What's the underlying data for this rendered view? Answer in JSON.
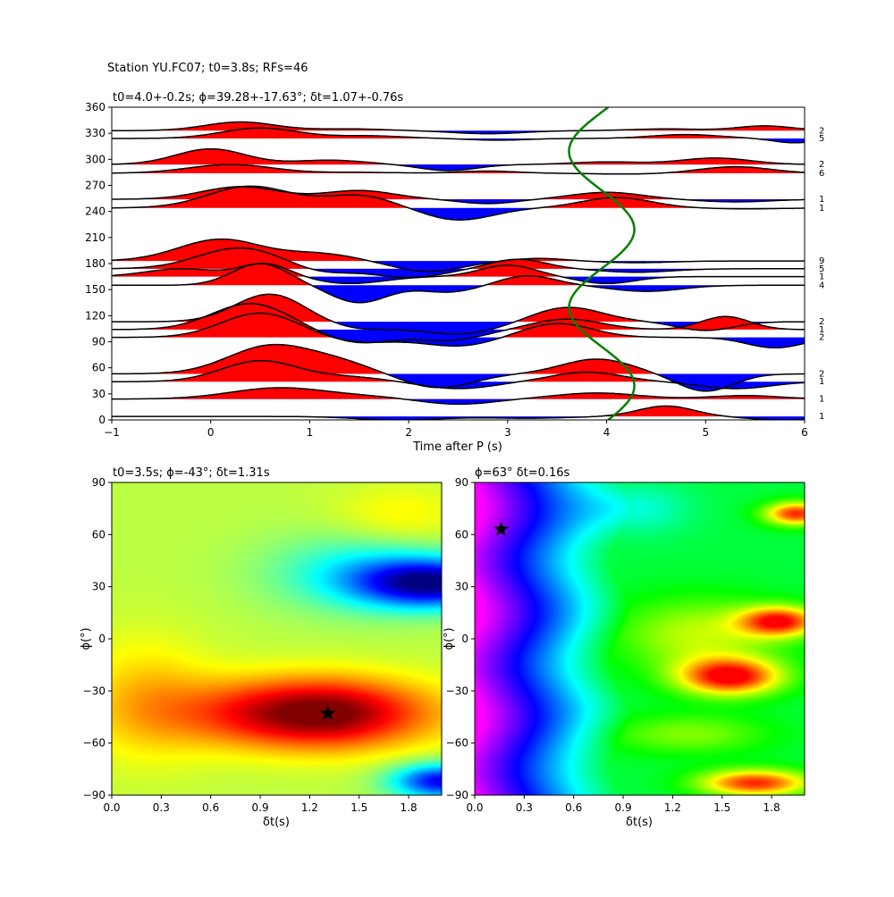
{
  "figure": {
    "suptitle": "Station YU.FC07; t0=3.8s; RFs=46"
  },
  "chart_data": [
    {
      "type": "line",
      "title": "t0=4.0+-0.2s; ϕ=39.28+-17.63°; δt=1.07+-0.76s",
      "xlabel": "Time after P (s)",
      "ylabel": "",
      "xlim": [
        -1,
        6
      ],
      "ylim": [
        0,
        360
      ],
      "xticks": [
        -1,
        0,
        1,
        2,
        3,
        4,
        5,
        6
      ],
      "yticks": [
        0,
        30,
        60,
        90,
        120,
        150,
        180,
        210,
        240,
        270,
        300,
        330,
        360
      ],
      "bin_counts": [
        {
          "y": 333,
          "count": "2"
        },
        {
          "y": 324,
          "count": "5"
        },
        {
          "y": 294,
          "count": "2"
        },
        {
          "y": 284,
          "count": "6"
        },
        {
          "y": 254,
          "count": "1"
        },
        {
          "y": 244,
          "count": "1"
        },
        {
          "y": 183,
          "count": "9"
        },
        {
          "y": 174,
          "count": "5"
        },
        {
          "y": 165,
          "count": "1"
        },
        {
          "y": 155,
          "count": "4"
        },
        {
          "y": 113,
          "count": "2"
        },
        {
          "y": 104,
          "count": "1"
        },
        {
          "y": 95,
          "count": "2"
        },
        {
          "y": 53,
          "count": "2"
        },
        {
          "y": 44,
          "count": "1"
        },
        {
          "y": 24,
          "count": "1"
        },
        {
          "y": 4,
          "count": "1"
        }
      ],
      "traces": [
        {
          "y0": 333,
          "amp": 1.0,
          "comps": [
            [
              0.3,
              0.5,
              1.0
            ],
            [
              1.4,
              0.5,
              0.2
            ],
            [
              2.8,
              0.5,
              -0.35
            ],
            [
              4.6,
              0.5,
              0.2
            ],
            [
              5.6,
              0.4,
              0.55
            ]
          ]
        },
        {
          "y0": 324,
          "amp": 1.0,
          "comps": [
            [
              0.5,
              0.55,
              1.2
            ],
            [
              1.6,
              0.5,
              0.3
            ],
            [
              2.9,
              0.4,
              -0.2
            ],
            [
              4.8,
              0.5,
              0.45
            ],
            [
              5.9,
              0.3,
              -0.5
            ]
          ]
        },
        {
          "y0": 294,
          "amp": 1.0,
          "comps": [
            [
              0.0,
              0.5,
              1.8
            ],
            [
              1.2,
              0.5,
              0.5
            ],
            [
              2.4,
              0.4,
              -0.7
            ],
            [
              4.0,
              0.5,
              0.3
            ],
            [
              5.1,
              0.5,
              0.75
            ]
          ]
        },
        {
          "y0": 284,
          "amp": 1.0,
          "comps": [
            [
              0.2,
              0.6,
              1.0
            ],
            [
              1.5,
              0.5,
              0.1
            ],
            [
              2.8,
              0.4,
              0.25
            ],
            [
              4.2,
              0.5,
              -0.1
            ],
            [
              5.3,
              0.5,
              0.75
            ]
          ]
        },
        {
          "y0": 254,
          "amp": 1.0,
          "comps": [
            [
              0.3,
              0.55,
              1.45
            ],
            [
              1.5,
              0.5,
              1.0
            ],
            [
              2.8,
              0.4,
              -0.5
            ],
            [
              4.0,
              0.5,
              0.8
            ],
            [
              5.3,
              0.5,
              -0.3
            ]
          ]
        },
        {
          "y0": 244,
          "amp": 1.0,
          "comps": [
            [
              0.4,
              0.6,
              2.5
            ],
            [
              1.5,
              0.5,
              1.4
            ],
            [
              2.5,
              0.5,
              -1.4
            ],
            [
              4.1,
              0.5,
              1.2
            ],
            [
              5.4,
              0.5,
              -0.1
            ]
          ]
        },
        {
          "y0": 183,
          "amp": 1.0,
          "comps": [
            [
              0.1,
              0.6,
              2.5
            ],
            [
              1.1,
              0.5,
              0.8
            ],
            [
              2.2,
              0.5,
              -1.2
            ],
            [
              3.3,
              0.4,
              0.3
            ],
            [
              4.3,
              0.5,
              -0.2
            ]
          ]
        },
        {
          "y0": 174,
          "amp": 1.0,
          "comps": [
            [
              0.3,
              0.6,
              2.4
            ],
            [
              1.1,
              0.4,
              -0.6
            ],
            [
              2.0,
              0.5,
              -1.0
            ],
            [
              3.1,
              0.4,
              1.1
            ],
            [
              4.3,
              0.5,
              -0.4
            ]
          ]
        },
        {
          "y0": 165,
          "amp": 1.0,
          "comps": [
            [
              -0.3,
              0.5,
              0.9
            ],
            [
              0.55,
              0.35,
              1.5
            ],
            [
              1.4,
              0.5,
              -0.8
            ],
            [
              3.0,
              0.4,
              1.3
            ],
            [
              4.0,
              0.4,
              -0.8
            ]
          ]
        },
        {
          "y0": 155,
          "amp": 1.0,
          "comps": [
            [
              0.5,
              0.4,
              2.5
            ],
            [
              1.5,
              0.4,
              -2.0
            ],
            [
              2.4,
              0.4,
              -0.8
            ],
            [
              3.2,
              0.4,
              1.1
            ],
            [
              4.4,
              0.5,
              -0.7
            ]
          ]
        },
        {
          "y0": 113,
          "amp": 1.0,
          "comps": [
            [
              0.6,
              0.5,
              3.2
            ],
            [
              1.5,
              0.5,
              -0.8
            ],
            [
              2.5,
              0.6,
              -1.4
            ],
            [
              3.6,
              0.5,
              1.7
            ],
            [
              5.0,
              0.4,
              -1.0
            ]
          ]
        },
        {
          "y0": 104,
          "amp": 1.0,
          "comps": [
            [
              0.4,
              0.55,
              3.0
            ],
            [
              1.5,
              0.5,
              -1.5
            ],
            [
              2.4,
              0.5,
              -1.2
            ],
            [
              3.6,
              0.5,
              1.2
            ],
            [
              5.2,
              0.35,
              1.5
            ]
          ]
        },
        {
          "y0": 95,
          "amp": 1.0,
          "comps": [
            [
              0.5,
              0.55,
              2.8
            ],
            [
              1.5,
              0.5,
              -0.6
            ],
            [
              2.5,
              0.5,
              -1.0
            ],
            [
              3.5,
              0.5,
              1.6
            ],
            [
              5.7,
              0.4,
              -1.2
            ]
          ]
        },
        {
          "y0": 53,
          "amp": 1.0,
          "comps": [
            [
              0.6,
              0.6,
              3.2
            ],
            [
              1.3,
              0.5,
              1.1
            ],
            [
              2.3,
              0.5,
              -1.6
            ],
            [
              3.9,
              0.5,
              1.7
            ],
            [
              5.0,
              0.4,
              -2.0
            ]
          ]
        },
        {
          "y0": 44,
          "amp": 1.0,
          "comps": [
            [
              0.5,
              0.55,
              2.4
            ],
            [
              1.4,
              0.5,
              0.5
            ],
            [
              2.5,
              0.5,
              -0.8
            ],
            [
              3.8,
              0.5,
              1.1
            ],
            [
              5.3,
              0.5,
              -0.8
            ]
          ]
        },
        {
          "y0": 24,
          "amp": 1.0,
          "comps": [
            [
              0.7,
              0.7,
              1.3
            ],
            [
              1.6,
              0.5,
              0.2
            ],
            [
              2.5,
              0.5,
              -0.6
            ],
            [
              3.9,
              0.6,
              0.7
            ],
            [
              5.4,
              0.5,
              0.4
            ]
          ]
        },
        {
          "y0": 4,
          "amp": 1.0,
          "comps": [
            [
              0.2,
              0.7,
              0.0
            ],
            [
              1.9,
              0.6,
              -0.4
            ],
            [
              3.2,
              0.6,
              -0.2
            ],
            [
              4.6,
              0.4,
              1.2
            ],
            [
              5.8,
              0.5,
              -0.4
            ]
          ]
        }
      ],
      "fit_curve": {
        "color": "#008000",
        "x_center": 3.95,
        "x_amplitude": 0.33,
        "phase_deg": 39.28
      }
    },
    {
      "type": "heatmap",
      "title": "t0=3.5s; ϕ=-43°; δt=1.31s",
      "xlabel": "δt(s)",
      "ylabel": "ϕ(°)",
      "xlim": [
        0,
        2.0
      ],
      "ylim": [
        -90,
        90
      ],
      "xticks": [
        0.0,
        0.3,
        0.6,
        0.9,
        1.2,
        1.5,
        1.8
      ],
      "yticks": [
        -90,
        -60,
        -30,
        0,
        30,
        60,
        90
      ],
      "colormap": "jet",
      "best": {
        "dt": 1.31,
        "phi": -43
      }
    },
    {
      "type": "heatmap",
      "title": "ϕ=63° δt=0.16s",
      "xlabel": "δt(s)",
      "ylabel": "ϕ(°)",
      "xlim": [
        0,
        2.0
      ],
      "ylim": [
        -90,
        90
      ],
      "xticks": [
        0.0,
        0.3,
        0.6,
        0.9,
        1.2,
        1.5,
        1.8
      ],
      "yticks": [
        -90,
        -60,
        -30,
        0,
        30,
        60,
        90
      ],
      "colormap": "gist_rainbow",
      "best": {
        "dt": 0.16,
        "phi": 63
      }
    }
  ]
}
